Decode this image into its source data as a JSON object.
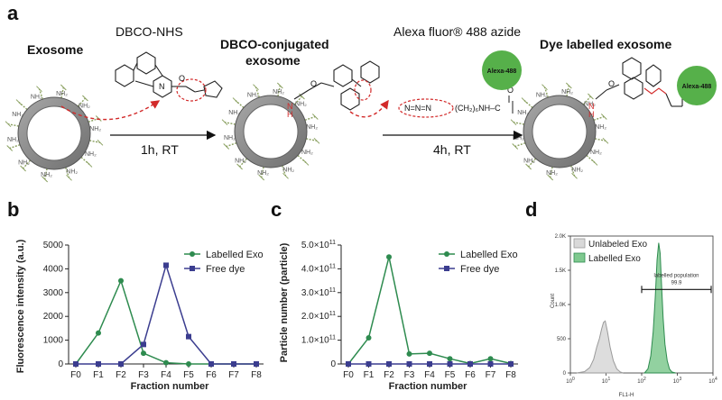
{
  "panel_labels": {
    "a": "a",
    "b": "b",
    "c": "c",
    "d": "d"
  },
  "scheme": {
    "step1_name": "Exosome",
    "reagent1": "DBCO-NHS",
    "condition1": "1h, RT",
    "step2_name_line1": "DBCO-conjugated",
    "step2_name_line2": "exosome",
    "reagent2": "Alexa fluor® 488 azide",
    "dye_label": "Alexa-488",
    "azide_chain_left": "N=N=N",
    "azide_chain_right": "(CH₂)₆NH–C",
    "condition2": "4h, RT",
    "step3_name": "Dye labelled exosome",
    "dye_label_final": "Alexa-488",
    "amide_N": "N",
    "amide_H": "H",
    "carbonyl_O": "O"
  },
  "colors": {
    "green": "#2e8b4f",
    "navy": "#3b3d8f",
    "red": "#d22a2a",
    "dye_green": "#56b04a",
    "exo_gray": "#8c8c8c",
    "spike": "#8aa060"
  },
  "chart_data": [
    {
      "type": "line",
      "panel": "b",
      "categories": [
        "F0",
        "F1",
        "F2",
        "F3",
        "F4",
        "F5",
        "F6",
        "F7",
        "F8"
      ],
      "series": [
        {
          "name": "Labelled Exo",
          "values": [
            0,
            1300,
            3500,
            450,
            50,
            0,
            0,
            0,
            0
          ],
          "color": "#2e8b4f",
          "marker": "circle"
        },
        {
          "name": "Free dye",
          "values": [
            0,
            0,
            0,
            820,
            4150,
            1150,
            0,
            0,
            0
          ],
          "color": "#3b3d8f",
          "marker": "square"
        }
      ],
      "xlabel": "Fraction number",
      "ylabel": "Fluorescence intensity (a.u.)",
      "ylim": [
        0,
        5000
      ],
      "yticks": [
        "0",
        "1000",
        "2000",
        "3000",
        "4000",
        "5000"
      ],
      "legend": "top-right"
    },
    {
      "type": "line",
      "panel": "c",
      "categories": [
        "F0",
        "F1",
        "F2",
        "F3",
        "F4",
        "F5",
        "F6",
        "F7",
        "F8"
      ],
      "series": [
        {
          "name": "Labelled Exo",
          "values": [
            0,
            110000000000.0,
            450000000000.0,
            42000000000.0,
            45000000000.0,
            22000000000.0,
            2000000000.0,
            22000000000.0,
            2000000000.0
          ],
          "color": "#2e8b4f",
          "marker": "circle"
        },
        {
          "name": "Free dye",
          "values": [
            0,
            0,
            0,
            0,
            0,
            0,
            0,
            0,
            0
          ],
          "color": "#3b3d8f",
          "marker": "square"
        }
      ],
      "xlabel": "Fraction number",
      "ylabel": "Particle number (particle)",
      "ylim": [
        0,
        500000000000.0
      ],
      "yticks": [
        {
          "m": "0",
          "e": ""
        },
        {
          "m": "1.0×10",
          "e": "11"
        },
        {
          "m": "2.0×10",
          "e": "11"
        },
        {
          "m": "3.0×10",
          "e": "11"
        },
        {
          "m": "4.0×10",
          "e": "11"
        },
        {
          "m": "5.0×10",
          "e": "11"
        }
      ],
      "legend": "top-right"
    },
    {
      "type": "area",
      "panel": "d",
      "xscale": "log",
      "xlim": [
        1,
        10000
      ],
      "xticks": [
        {
          "m": "10",
          "e": "0"
        },
        {
          "m": "10",
          "e": "1"
        },
        {
          "m": "10",
          "e": "2"
        },
        {
          "m": "10",
          "e": "3"
        },
        {
          "m": "10",
          "e": "4"
        }
      ],
      "ylim": [
        0,
        2000
      ],
      "yticks": [
        "0",
        "500",
        "1.0K",
        "1.5K",
        "2.0K"
      ],
      "xlabel": "FL1-H",
      "ylabel": "Count",
      "series": [
        {
          "name": "Unlabeled Exo",
          "x": [
            1.5,
            2.5,
            3.5,
            4.5,
            5.5,
            6.5,
            7.5,
            8.5,
            9.5,
            11,
            13,
            16,
            20,
            25,
            30
          ],
          "values": [
            0,
            20,
            80,
            200,
            380,
            500,
            640,
            740,
            760,
            600,
            380,
            180,
            60,
            15,
            0
          ],
          "color": "#c8c8c8"
        },
        {
          "name": "Labelled Exo",
          "x": [
            120,
            150,
            180,
            210,
            240,
            270,
            300,
            330,
            360,
            400,
            450,
            520,
            600,
            700,
            900
          ],
          "values": [
            0,
            60,
            250,
            600,
            1100,
            1650,
            1900,
            1750,
            1300,
            800,
            420,
            180,
            60,
            15,
            0
          ],
          "color": "#2e8b4f"
        }
      ],
      "gate": {
        "label_line1": "labelled population",
        "label_line2": "99.9",
        "x_start": 100,
        "x_end": 10000,
        "y": 1220
      },
      "legend": "top-left"
    }
  ]
}
